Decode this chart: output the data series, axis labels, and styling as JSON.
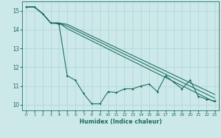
{
  "xlabel": "Humidex (Indice chaleur)",
  "background_color": "#cce8e8",
  "grid_color": "#aad4d4",
  "line_color": "#1a6b5a",
  "xlim": [
    -0.5,
    23.5
  ],
  "ylim": [
    9.7,
    15.5
  ],
  "yticks": [
    10,
    11,
    12,
    13,
    14,
    15
  ],
  "xticks": [
    0,
    1,
    2,
    3,
    4,
    5,
    6,
    7,
    8,
    9,
    10,
    11,
    12,
    13,
    14,
    15,
    16,
    17,
    18,
    19,
    20,
    21,
    22,
    23
  ],
  "series1": [
    [
      0,
      15.2
    ],
    [
      1,
      15.2
    ],
    [
      2,
      14.85
    ],
    [
      3,
      14.35
    ],
    [
      4,
      14.3
    ],
    [
      5,
      11.55
    ],
    [
      6,
      11.3
    ],
    [
      7,
      10.6
    ],
    [
      8,
      10.05
    ],
    [
      9,
      10.05
    ],
    [
      10,
      10.7
    ],
    [
      11,
      10.65
    ],
    [
      12,
      10.85
    ],
    [
      13,
      10.85
    ],
    [
      14,
      11.0
    ],
    [
      15,
      11.1
    ],
    [
      16,
      10.7
    ],
    [
      17,
      11.55
    ],
    [
      18,
      11.2
    ],
    [
      19,
      10.85
    ],
    [
      20,
      11.3
    ],
    [
      21,
      10.45
    ],
    [
      22,
      10.3
    ],
    [
      23,
      10.2
    ]
  ],
  "series2": [
    [
      0,
      15.2
    ],
    [
      1,
      15.2
    ],
    [
      2,
      14.85
    ],
    [
      3,
      14.35
    ],
    [
      4,
      14.35
    ],
    [
      5,
      14.28
    ],
    [
      23,
      10.55
    ]
  ],
  "series3": [
    [
      0,
      15.2
    ],
    [
      1,
      15.2
    ],
    [
      2,
      14.85
    ],
    [
      3,
      14.35
    ],
    [
      4,
      14.35
    ],
    [
      5,
      14.18
    ],
    [
      23,
      10.35
    ]
  ],
  "series4": [
    [
      0,
      15.2
    ],
    [
      1,
      15.2
    ],
    [
      2,
      14.85
    ],
    [
      3,
      14.35
    ],
    [
      4,
      14.35
    ],
    [
      5,
      14.05
    ],
    [
      23,
      10.15
    ]
  ]
}
